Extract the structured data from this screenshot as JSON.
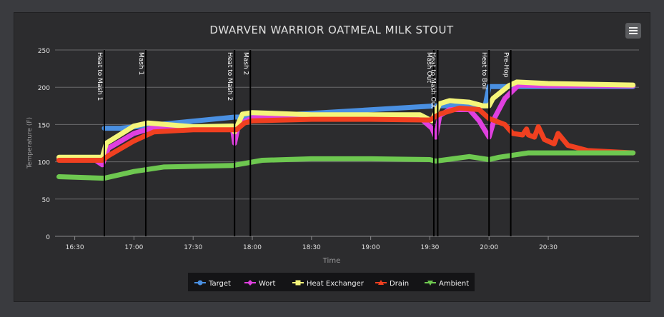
{
  "chart_data": {
    "type": "line",
    "title": "DWARVEN WARRIOR OATMEAL MILK STOUT",
    "xlabel": "Time",
    "ylabel": "Temperature (F)",
    "ylim": [
      0,
      250
    ],
    "yticks": [
      0,
      50,
      100,
      150,
      200,
      250
    ],
    "x_domain": [
      "16:20",
      "21:16"
    ],
    "xticks": [
      "16:30",
      "17:00",
      "17:30",
      "18:00",
      "18:30",
      "19:00",
      "19:30",
      "20:00",
      "20:30"
    ],
    "grid": true,
    "legend_position": "bottom",
    "colors": {
      "background": "#2c2c2e",
      "page": "#3a3b3f",
      "grid": "#6a6a6c",
      "text": "#e0e0e0",
      "marker_line": "#000000"
    },
    "plot_bands": [
      {
        "label": "Heat to Mash 1",
        "x": "16:45"
      },
      {
        "label": "Mash 1",
        "x": "17:06"
      },
      {
        "label": "Heat to Mash 2",
        "x": "17:51"
      },
      {
        "label": "Mash 2",
        "x": "17:59"
      },
      {
        "label": "Mash Out",
        "x": "19:32"
      },
      {
        "label": "Heat to Mash Out",
        "x": "19:34"
      },
      {
        "label": "Heat to Boil",
        "x": "20:00"
      },
      {
        "label": "Pre-Hop",
        "x": "20:11"
      }
    ],
    "series": [
      {
        "name": "Target",
        "color": "#4a90e2",
        "marker": "circle",
        "points": [
          [
            "16:45",
            145
          ],
          [
            "16:53",
            145
          ],
          [
            "17:51",
            160
          ],
          [
            "17:58",
            160
          ],
          [
            "19:33",
            175
          ],
          [
            "19:58",
            175
          ],
          [
            "20:00",
            201
          ],
          [
            "20:10",
            201
          ],
          [
            "20:40",
            201
          ],
          [
            "21:13",
            201
          ]
        ]
      },
      {
        "name": "Wort",
        "color": "#e040e0",
        "marker": "diamond",
        "points": [
          [
            "16:22",
            103
          ],
          [
            "16:40",
            103
          ],
          [
            "16:44",
            96
          ],
          [
            "16:47",
            118
          ],
          [
            "17:00",
            138
          ],
          [
            "17:10",
            146
          ],
          [
            "17:30",
            146
          ],
          [
            "17:50",
            144
          ],
          [
            "17:51",
            125
          ],
          [
            "17:53",
            150
          ],
          [
            "18:00",
            159
          ],
          [
            "18:30",
            160
          ],
          [
            "19:00",
            160
          ],
          [
            "19:25",
            159
          ],
          [
            "19:31",
            145
          ],
          [
            "19:33",
            133
          ],
          [
            "19:35",
            162
          ],
          [
            "19:40",
            170
          ],
          [
            "19:50",
            170
          ],
          [
            "19:55",
            155
          ],
          [
            "20:00",
            133
          ],
          [
            "20:03",
            160
          ],
          [
            "20:08",
            185
          ],
          [
            "20:15",
            203
          ],
          [
            "20:30",
            202
          ],
          [
            "21:13",
            202
          ]
        ]
      },
      {
        "name": "Heat Exchanger",
        "color": "#f5f57a",
        "marker": "square",
        "points": [
          [
            "16:22",
            106
          ],
          [
            "16:44",
            106
          ],
          [
            "16:46",
            125
          ],
          [
            "17:00",
            148
          ],
          [
            "17:07",
            152
          ],
          [
            "17:30",
            147
          ],
          [
            "17:50",
            148
          ],
          [
            "17:51",
            140
          ],
          [
            "17:55",
            164
          ],
          [
            "18:00",
            166
          ],
          [
            "18:30",
            163
          ],
          [
            "19:00",
            163
          ],
          [
            "19:25",
            163
          ],
          [
            "19:31",
            155
          ],
          [
            "19:35",
            178
          ],
          [
            "19:40",
            182
          ],
          [
            "19:50",
            180
          ],
          [
            "19:57",
            175
          ],
          [
            "20:00",
            175
          ],
          [
            "20:02",
            185
          ],
          [
            "20:10",
            202
          ],
          [
            "20:14",
            207
          ],
          [
            "20:30",
            205
          ],
          [
            "21:13",
            203
          ]
        ]
      },
      {
        "name": "Drain",
        "color": "#f04020",
        "marker": "triangle",
        "points": [
          [
            "16:22",
            102
          ],
          [
            "16:44",
            102
          ],
          [
            "16:47",
            108
          ],
          [
            "17:00",
            128
          ],
          [
            "17:10",
            140
          ],
          [
            "17:30",
            143
          ],
          [
            "17:52",
            143
          ],
          [
            "17:56",
            152
          ],
          [
            "18:00",
            155
          ],
          [
            "18:30",
            157
          ],
          [
            "19:00",
            157
          ],
          [
            "19:30",
            156
          ],
          [
            "19:35",
            164
          ],
          [
            "19:45",
            172
          ],
          [
            "19:55",
            170
          ],
          [
            "20:00",
            158
          ],
          [
            "20:08",
            150
          ],
          [
            "20:12",
            138
          ],
          [
            "20:17",
            136
          ],
          [
            "20:19",
            144
          ],
          [
            "20:20",
            136
          ],
          [
            "20:23",
            133
          ],
          [
            "20:25",
            147
          ],
          [
            "20:28",
            130
          ],
          [
            "20:33",
            124
          ],
          [
            "20:35",
            138
          ],
          [
            "20:40",
            122
          ],
          [
            "20:50",
            115
          ],
          [
            "21:13",
            112
          ]
        ]
      },
      {
        "name": "Ambient",
        "color": "#6ec850",
        "marker": "triangle-down",
        "points": [
          [
            "16:22",
            80
          ],
          [
            "16:45",
            78
          ],
          [
            "17:00",
            87
          ],
          [
            "17:15",
            93
          ],
          [
            "17:50",
            95
          ],
          [
            "18:05",
            102
          ],
          [
            "18:30",
            104
          ],
          [
            "19:00",
            104
          ],
          [
            "19:30",
            103
          ],
          [
            "19:33",
            101
          ],
          [
            "19:50",
            107
          ],
          [
            "20:00",
            103
          ],
          [
            "20:05",
            106
          ],
          [
            "20:20",
            112
          ],
          [
            "20:40",
            112
          ],
          [
            "21:13",
            112
          ]
        ]
      }
    ]
  }
}
